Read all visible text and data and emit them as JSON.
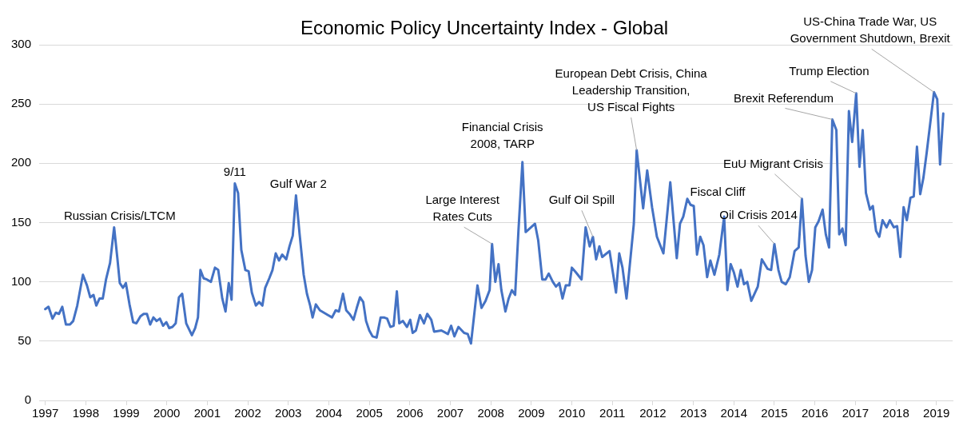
{
  "chart_data": {
    "type": "line",
    "title": "Economic Policy Uncertainty Index - Global",
    "xlim": [
      1996.85,
      2019.4
    ],
    "xticks": [
      1997,
      1998,
      1999,
      2000,
      2001,
      2002,
      2003,
      2004,
      2005,
      2006,
      2007,
      2008,
      2009,
      2010,
      2011,
      2012,
      2013,
      2014,
      2015,
      2016,
      2017,
      2018,
      2019
    ],
    "ylim": [
      0,
      300
    ],
    "yticks": [
      0,
      50,
      100,
      150,
      200,
      250,
      300
    ],
    "grid": "y",
    "legend": false,
    "marker": "none",
    "line_style": "solid",
    "series": [
      {
        "color": "#4472c4",
        "x": [
          1997.0,
          1997.08,
          1997.18,
          1997.26,
          1997.34,
          1997.42,
          1997.51,
          1997.61,
          1997.69,
          1997.79,
          1997.93,
          1998.03,
          1998.11,
          1998.19,
          1998.26,
          1998.34,
          1998.42,
          1998.5,
          1998.6,
          1998.7,
          1998.78,
          1998.84,
          1998.92,
          1998.99,
          1999.08,
          1999.17,
          1999.25,
          1999.35,
          1999.43,
          1999.51,
          1999.59,
          1999.67,
          1999.75,
          1999.83,
          1999.91,
          1999.99,
          2000.06,
          2000.14,
          2000.22,
          2000.3,
          2000.38,
          2000.48,
          2000.62,
          2000.7,
          2000.77,
          2000.83,
          2000.91,
          2000.99,
          2001.09,
          2001.19,
          2001.27,
          2001.37,
          2001.45,
          2001.53,
          2001.6,
          2001.68,
          2001.76,
          2001.84,
          2001.94,
          2002.02,
          2002.1,
          2002.2,
          2002.28,
          2002.36,
          2002.43,
          2002.53,
          2002.61,
          2002.69,
          2002.77,
          2002.85,
          2002.95,
          2003.03,
          2003.11,
          2003.19,
          2003.28,
          2003.38,
          2003.46,
          2003.54,
          2003.6,
          2003.68,
          2003.78,
          2003.88,
          2003.98,
          2004.08,
          2004.17,
          2004.25,
          2004.35,
          2004.43,
          2004.51,
          2004.61,
          2004.69,
          2004.77,
          2004.85,
          2004.92,
          2005.0,
          2005.08,
          2005.18,
          2005.28,
          2005.36,
          2005.44,
          2005.52,
          2005.6,
          2005.68,
          2005.74,
          2005.83,
          2005.93,
          2006.01,
          2006.07,
          2006.15,
          2006.25,
          2006.35,
          2006.43,
          2006.53,
          2006.6,
          2006.78,
          2006.94,
          2007.02,
          2007.1,
          2007.2,
          2007.34,
          2007.43,
          2007.51,
          2007.67,
          2007.77,
          2007.87,
          2007.97,
          2008.03,
          2008.11,
          2008.19,
          2008.26,
          2008.36,
          2008.44,
          2008.52,
          2008.6,
          2008.68,
          2008.78,
          2008.86,
          2008.96,
          2009.09,
          2009.17,
          2009.27,
          2009.35,
          2009.43,
          2009.53,
          2009.61,
          2009.69,
          2009.77,
          2009.85,
          2009.94,
          2010.0,
          2010.1,
          2010.24,
          2010.34,
          2010.44,
          2010.52,
          2010.6,
          2010.68,
          2010.75,
          2010.93,
          2011.09,
          2011.17,
          2011.25,
          2011.35,
          2011.53,
          2011.6,
          2011.76,
          2011.86,
          2011.98,
          2012.1,
          2012.26,
          2012.43,
          2012.59,
          2012.67,
          2012.75,
          2012.85,
          2012.93,
          2013.01,
          2013.09,
          2013.17,
          2013.25,
          2013.34,
          2013.42,
          2013.52,
          2013.64,
          2013.76,
          2013.84,
          2013.92,
          2014.0,
          2014.09,
          2014.17,
          2014.25,
          2014.33,
          2014.43,
          2014.59,
          2014.69,
          2014.83,
          2014.92,
          2015.0,
          2015.1,
          2015.18,
          2015.28,
          2015.38,
          2015.5,
          2015.6,
          2015.68,
          2015.77,
          2015.85,
          2015.93,
          2016.01,
          2016.09,
          2016.19,
          2016.27,
          2016.35,
          2016.43,
          2016.53,
          2016.6,
          2016.68,
          2016.76,
          2016.84,
          2016.92,
          2017.02,
          2017.1,
          2017.18,
          2017.26,
          2017.36,
          2017.43,
          2017.51,
          2017.59,
          2017.67,
          2017.77,
          2017.85,
          2017.95,
          2018.03,
          2018.11,
          2018.19,
          2018.27,
          2018.36,
          2018.44,
          2018.52,
          2018.6,
          2018.68,
          2018.76,
          2018.94,
          2019.02,
          2019.09,
          2019.17
        ],
        "values": [
          77,
          79,
          69,
          74,
          73,
          79,
          64,
          64,
          67,
          80,
          106,
          97,
          87,
          89,
          80,
          86,
          86,
          102,
          116,
          146,
          120,
          99,
          95,
          99,
          81,
          66,
          65,
          71,
          73,
          73,
          64,
          70,
          67,
          69,
          63,
          66,
          61,
          62,
          65,
          87,
          90,
          65,
          55,
          61,
          70,
          110,
          103,
          102,
          100,
          112,
          110,
          86,
          75,
          99,
          85,
          183,
          175,
          127,
          110,
          109,
          91,
          80,
          83,
          80,
          95,
          103,
          110,
          124,
          118,
          123,
          119,
          130,
          139,
          173,
          140,
          106,
          90,
          80,
          70,
          81,
          76,
          74,
          72,
          70,
          76,
          75,
          90,
          76,
          73,
          68,
          78,
          87,
          83,
          67,
          59,
          54,
          53,
          70,
          70,
          69,
          62,
          63,
          92,
          65,
          67,
          62,
          68,
          57,
          59,
          72,
          65,
          73,
          68,
          58,
          59,
          56,
          63,
          54,
          62,
          57,
          56,
          48,
          97,
          78,
          84,
          93,
          132,
          100,
          115,
          93,
          75,
          86,
          93,
          89,
          142,
          201,
          142,
          145,
          149,
          135,
          102,
          102,
          107,
          100,
          96,
          99,
          86,
          97,
          97,
          112,
          108,
          102,
          146,
          130,
          138,
          119,
          130,
          121,
          126,
          91,
          124,
          112,
          86,
          149,
          211,
          162,
          194,
          163,
          138,
          124,
          184,
          120,
          149,
          155,
          170,
          165,
          164,
          123,
          138,
          131,
          104,
          118,
          106,
          123,
          155,
          93,
          115,
          108,
          96,
          110,
          98,
          100,
          84,
          96,
          119,
          111,
          110,
          132,
          110,
          100,
          98,
          104,
          126,
          129,
          170,
          122,
          100,
          110,
          146,
          151,
          161,
          140,
          129,
          237,
          228,
          140,
          145,
          131,
          244,
          218,
          259,
          197,
          228,
          175,
          161,
          164,
          143,
          138,
          152,
          146,
          152,
          146,
          147,
          121,
          163,
          152,
          171,
          172,
          214,
          174,
          188,
          209,
          260,
          254,
          199,
          242
        ]
      }
    ],
    "annotations": [
      {
        "text": "Russian Crisis/LTCM",
        "x": 1998.7,
        "y": 146
      },
      {
        "text": "9/11",
        "x": 2001.68,
        "y": 183
      },
      {
        "text": "Gulf War 2",
        "x": 2003.19,
        "y": 173
      },
      {
        "text": "Large Interest\nRates Cuts",
        "x": 2008.03,
        "y": 132
      },
      {
        "text": "Financial Crisis\n2008, TARP",
        "x": 2008.78,
        "y": 201
      },
      {
        "text": "Gulf Oil Spill",
        "x": 2010.52,
        "y": 138
      },
      {
        "text": "European Debt Crisis, China\nLeadership Transition,\nUS Fiscal Fights",
        "x": 2011.6,
        "y": 211
      },
      {
        "text": "Fiscal Cliff",
        "x": 2012.85,
        "y": 170
      },
      {
        "text": "Oil Crisis 2014",
        "x": 2015.0,
        "y": 132
      },
      {
        "text": "EuU Migrant Crisis",
        "x": 2015.68,
        "y": 170
      },
      {
        "text": "Brexit Referendum",
        "x": 2016.43,
        "y": 237
      },
      {
        "text": "Trump Election",
        "x": 2017.02,
        "y": 259
      },
      {
        "text": "US-China Trade War, US\nGovernment Shutdown, Brexit",
        "x": 2018.94,
        "y": 260
      }
    ]
  }
}
